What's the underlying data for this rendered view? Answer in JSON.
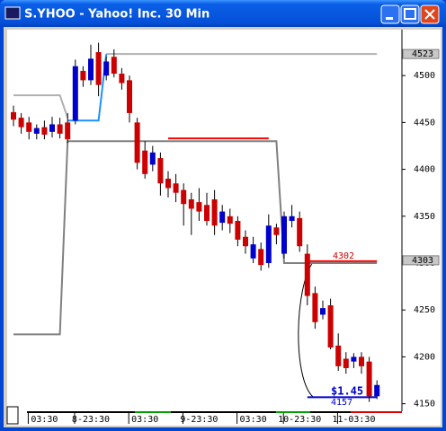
{
  "window_title": "S.YHOO - Yahoo! Inc. 30 Min",
  "chart_data": {
    "type": "candlestick",
    "categories": [
      null,
      null,
      null,
      null,
      "03:30",
      null,
      null,
      null,
      null,
      null,
      "8-23:30",
      null,
      null,
      null,
      null,
      null,
      null,
      "03:30",
      null,
      null,
      null,
      null,
      null,
      null,
      "9-23:30",
      null,
      null,
      null,
      null,
      null,
      null,
      "03:30",
      null,
      null,
      null,
      null,
      null,
      "10-23:30",
      null,
      null,
      null,
      null,
      null,
      null,
      "11-03:30",
      null,
      null,
      null
    ],
    "open": [
      4461,
      4455,
      4450,
      4438,
      4445,
      4440,
      4448,
      4450,
      4452,
      4505,
      4495,
      4525,
      4500,
      4520,
      4502,
      4495,
      4450,
      4420,
      4405,
      4412,
      4390,
      4385,
      4378,
      4368,
      4365,
      4362,
      4368,
      4343,
      4350,
      4345,
      4328,
      4305,
      4315,
      4300,
      4338,
      4310,
      4345,
      4348,
      4310,
      4268,
      4245,
      4255,
      4212,
      4198,
      4195,
      4200,
      4195,
      4158
    ],
    "high": [
      4468,
      4460,
      4456,
      4448,
      4452,
      4456,
      4455,
      4460,
      4517,
      4510,
      4533,
      4535,
      4520,
      4528,
      4508,
      4500,
      4455,
      4430,
      4425,
      4418,
      4398,
      4395,
      4385,
      4375,
      4380,
      4375,
      4378,
      4362,
      4358,
      4350,
      4335,
      4328,
      4322,
      4352,
      4342,
      4355,
      4362,
      4355,
      4320,
      4275,
      4260,
      4262,
      4225,
      4205,
      4204,
      4205,
      4200,
      4175
    ],
    "low": [
      4446,
      4438,
      4432,
      4432,
      4432,
      4434,
      4433,
      4428,
      4448,
      4488,
      4490,
      4478,
      4495,
      4498,
      4485,
      4450,
      4400,
      4390,
      4398,
      4372,
      4370,
      4365,
      4340,
      4330,
      4345,
      4340,
      4330,
      4335,
      4332,
      4318,
      4310,
      4300,
      4292,
      4295,
      4320,
      4305,
      4338,
      4312,
      4255,
      4230,
      4240,
      4208,
      4185,
      4182,
      4188,
      4182,
      4152,
      4155
    ],
    "close": [
      4453,
      4445,
      4440,
      4444,
      4437,
      4448,
      4438,
      4432,
      4510,
      4495,
      4518,
      4490,
      4515,
      4502,
      4492,
      4460,
      4407,
      4395,
      4418,
      4385,
      4380,
      4375,
      4363,
      4358,
      4355,
      4345,
      4340,
      4355,
      4342,
      4325,
      4318,
      4320,
      4298,
      4340,
      4330,
      4350,
      4350,
      4318,
      4265,
      4237,
      4252,
      4210,
      4190,
      4188,
      4200,
      4190,
      4158,
      4170
    ],
    "up_color": "#0000cc",
    "down_color": "#cc0000",
    "ylim": [
      4142,
      4549
    ],
    "yticks": [
      4150,
      4200,
      4250,
      4300,
      4350,
      4400,
      4450,
      4500
    ],
    "price_tags": [
      4523,
      4303
    ],
    "lines": [
      {
        "color": "#b0b0b0",
        "values": [
          4479,
          4479,
          4479,
          4479,
          4479,
          4479,
          4479,
          4455,
          null,
          null,
          null,
          null,
          4523,
          4523,
          4523,
          4523,
          4523,
          4523,
          4523,
          4523,
          4523,
          4523,
          4523,
          4523,
          4523,
          4523,
          4523,
          4523,
          4523,
          4523,
          4523,
          4523,
          4523,
          4523,
          4523,
          4523,
          4523,
          4523,
          4523,
          4523,
          4523,
          4523,
          4523,
          4523,
          4523,
          4523,
          4523,
          4523
        ]
      },
      {
        "color": "#1e90ff",
        "values": [
          null,
          null,
          null,
          null,
          null,
          null,
          null,
          4452,
          4452,
          4452,
          4452,
          4452,
          4523,
          null,
          null,
          null,
          null,
          null,
          null,
          null,
          null,
          null,
          null,
          null,
          null,
          null,
          null,
          null,
          null,
          null,
          null,
          null,
          null,
          null,
          null,
          null,
          null,
          null,
          null,
          null,
          null,
          null,
          null,
          null,
          null,
          null,
          null,
          null
        ]
      },
      {
        "color": "#808080",
        "values": [
          4224,
          4224,
          4224,
          4224,
          4224,
          4224,
          4224,
          4430,
          4430,
          4430,
          4430,
          4430,
          4430,
          4430,
          4430,
          4430,
          4430,
          4430,
          4430,
          4430,
          4430,
          4430,
          4430,
          4430,
          4430,
          4430,
          4430,
          4430,
          4430,
          4430,
          4430,
          4430,
          4430,
          4430,
          4430,
          4300,
          4300,
          4300,
          4300,
          4300,
          4300,
          4300,
          4300,
          4300,
          4300,
          4300,
          4300,
          4300
        ]
      },
      {
        "color": "#ff0000",
        "values": [
          null,
          null,
          null,
          null,
          null,
          null,
          null,
          null,
          null,
          null,
          null,
          null,
          null,
          null,
          null,
          null,
          null,
          null,
          null,
          null,
          4433,
          4433,
          4433,
          4433,
          4433,
          4433,
          4433,
          4433,
          4433,
          4433,
          4433,
          4433,
          4433,
          4433,
          null,
          null,
          null,
          null,
          4302,
          4302,
          4302,
          4302,
          4302,
          4302,
          4302,
          4302,
          4302,
          4302
        ]
      },
      {
        "color": "#0000cc",
        "values": [
          null,
          null,
          null,
          null,
          null,
          null,
          null,
          null,
          null,
          null,
          null,
          null,
          null,
          null,
          null,
          null,
          null,
          null,
          null,
          null,
          null,
          null,
          null,
          null,
          null,
          null,
          null,
          null,
          null,
          null,
          null,
          null,
          null,
          null,
          null,
          null,
          null,
          null,
          4157,
          4157,
          4157,
          4157,
          4157,
          4157,
          4157,
          4157,
          4157,
          4157
        ]
      }
    ],
    "annotations": [
      {
        "text": "4302",
        "color": "#cc0000"
      },
      {
        "text": "$1.45",
        "color": "#0000cc"
      },
      {
        "text": "4157",
        "color": "#0000cc"
      }
    ]
  }
}
